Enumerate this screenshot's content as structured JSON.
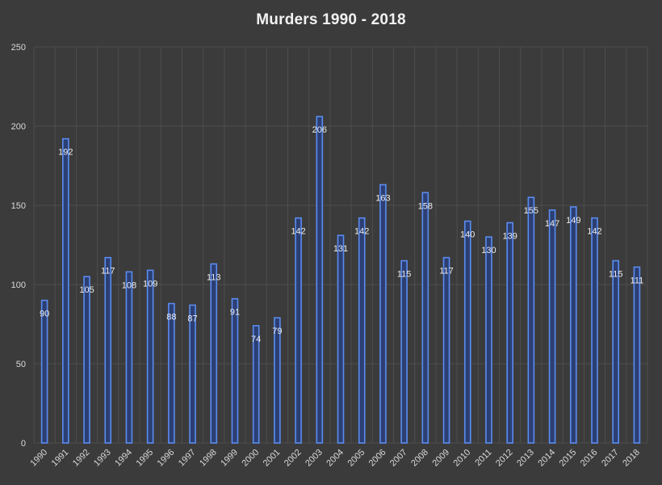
{
  "chart_data": {
    "type": "bar",
    "title": "Murders 1990 - 2018",
    "xlabel": "",
    "ylabel": "",
    "ylim": [
      0,
      250
    ],
    "yticks": [
      0,
      50,
      100,
      150,
      200,
      250
    ],
    "grid": true,
    "legend": "none",
    "categories": [
      "1990",
      "1991",
      "1992",
      "1993",
      "1994",
      "1995",
      "1996",
      "1997",
      "1998",
      "1999",
      "2000",
      "2001",
      "2002",
      "2003",
      "2004",
      "2005",
      "2006",
      "2007",
      "2008",
      "2009",
      "2010",
      "2011",
      "2012",
      "2013",
      "2014",
      "2015",
      "2016",
      "2017",
      "2018"
    ],
    "values": [
      90,
      192,
      105,
      117,
      108,
      109,
      88,
      87,
      113,
      91,
      74,
      79,
      142,
      206,
      131,
      142,
      163,
      115,
      158,
      117,
      140,
      130,
      139,
      155,
      147,
      149,
      142,
      115,
      111
    ],
    "data_labels": [
      "90",
      "192",
      "105",
      "117",
      "108",
      "109",
      "88",
      "87",
      "113",
      "91",
      "74",
      "79",
      "142",
      "206",
      "131",
      "142",
      "163",
      "115",
      "158",
      "117",
      "140",
      "130",
      "139",
      "155",
      "147",
      "149",
      "142",
      "115",
      "111"
    ],
    "colors": {
      "background": "#3b3b3b",
      "bar_fill": "#2c3f73",
      "bar_edge": "#5b8cf0",
      "grid": "#4e4e4e",
      "text": "#d9d9d9",
      "title": "#f2f2f2"
    }
  }
}
